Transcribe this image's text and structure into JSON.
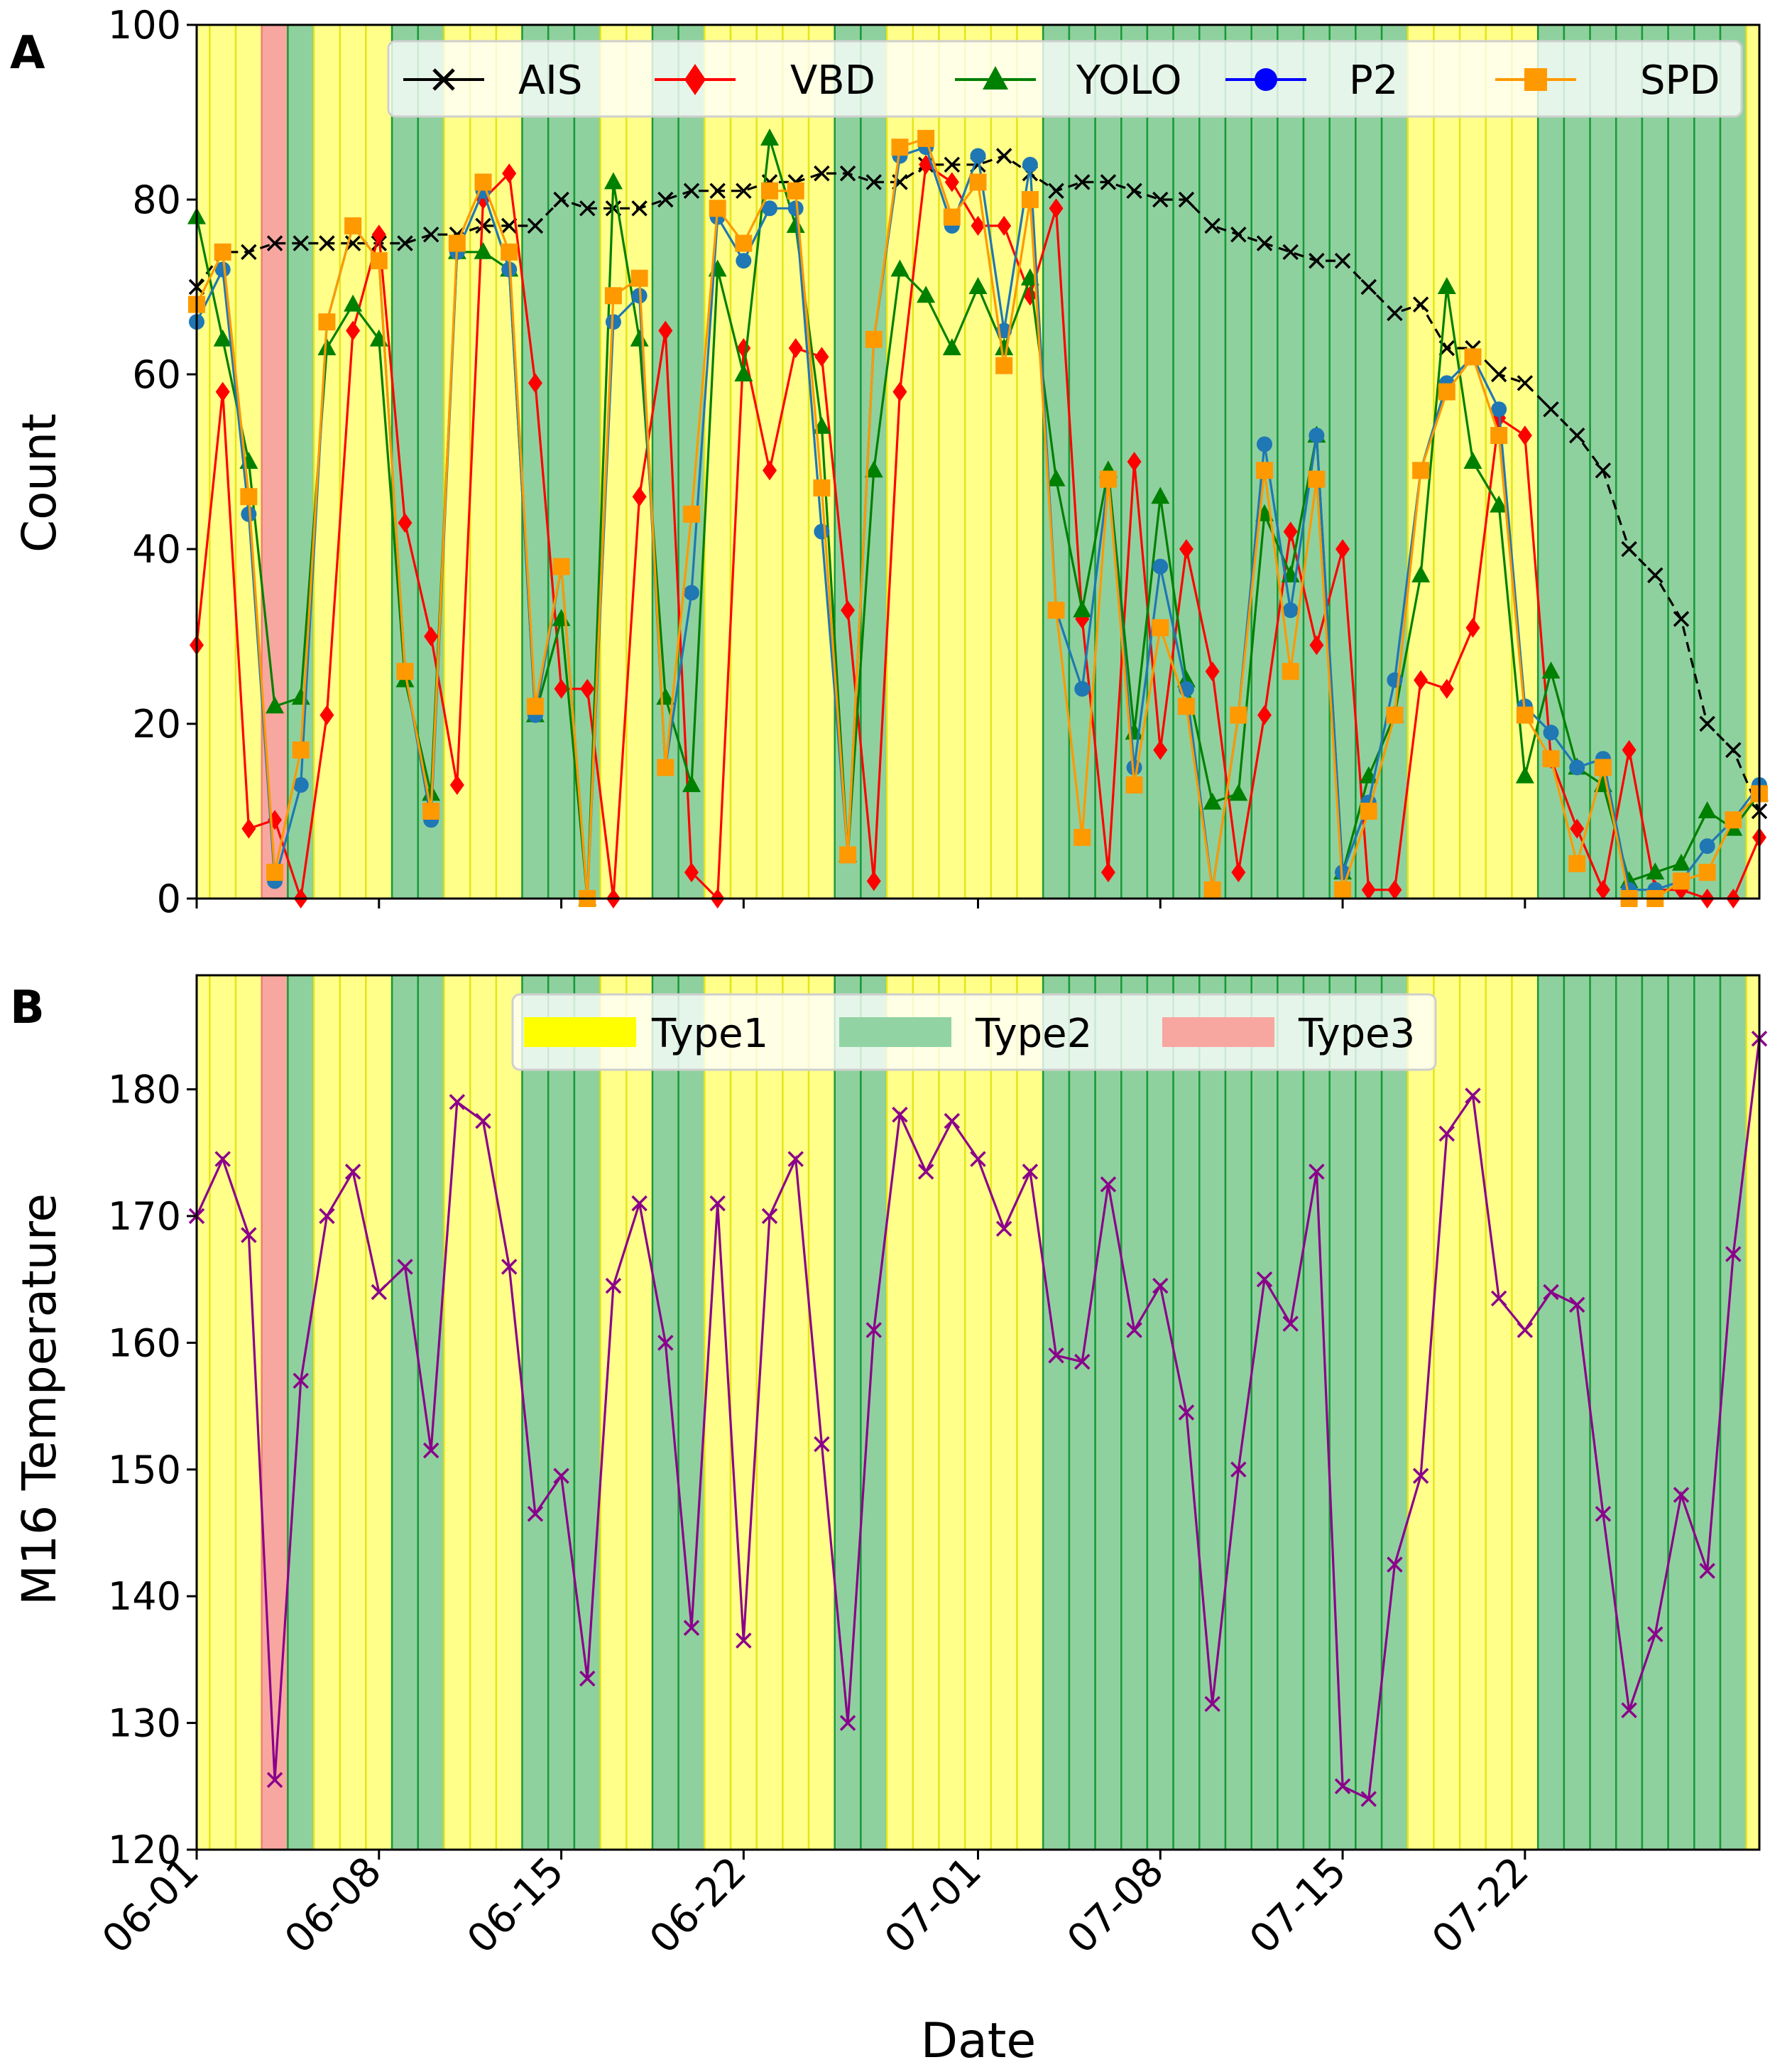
{
  "chart_data": [
    {
      "panel": "A",
      "type": "line",
      "xlabel": "",
      "ylabel": "Count",
      "ylim": [
        0,
        100
      ],
      "yticks": [
        0,
        20,
        40,
        60,
        80,
        100
      ],
      "xlim": [
        0,
        60
      ],
      "xtick_positions": [
        0,
        7,
        14,
        21,
        30,
        37,
        44,
        51
      ],
      "legend_position": "top",
      "series": [
        {
          "name": "AIS",
          "color": "#000000",
          "marker": "x",
          "dashed": true,
          "values": [
            70,
            74,
            74,
            75,
            75,
            75,
            75,
            75,
            75,
            76,
            76,
            77,
            77,
            77,
            80,
            79,
            79,
            79,
            80,
            81,
            81,
            81,
            82,
            82,
            83,
            83,
            82,
            82,
            84,
            84,
            84,
            85,
            83,
            81,
            82,
            82,
            81,
            80,
            80,
            77,
            76,
            75,
            74,
            73,
            73,
            70,
            67,
            68,
            63,
            63,
            60,
            59,
            56,
            53,
            49,
            40,
            37,
            32,
            20,
            17,
            10
          ]
        },
        {
          "name": "VBD",
          "color": "#ff0000",
          "marker": "diamond",
          "values": [
            29,
            58,
            8,
            9,
            0,
            21,
            65,
            76,
            43,
            30,
            13,
            80,
            83,
            59,
            24,
            24,
            0,
            46,
            65,
            3,
            0,
            63,
            49,
            63,
            62,
            33,
            2,
            58,
            84,
            82,
            77,
            77,
            69,
            79,
            32,
            3,
            50,
            17,
            40,
            26,
            3,
            21,
            42,
            29,
            40,
            1,
            1,
            25,
            24,
            31,
            55,
            53,
            16,
            8,
            1,
            17,
            1,
            1,
            0,
            0,
            7
          ]
        },
        {
          "name": "YOLO",
          "color": "#008000",
          "marker": "triangle",
          "values": [
            78,
            64,
            50,
            22,
            23,
            63,
            68,
            64,
            25,
            12,
            74,
            74,
            72,
            21,
            32,
            0,
            82,
            64,
            23,
            13,
            72,
            60,
            87,
            77,
            54,
            5,
            49,
            72,
            69,
            63,
            70,
            63,
            71,
            48,
            33,
            49,
            19,
            46,
            25,
            11,
            12,
            44,
            37,
            53,
            3,
            14,
            21,
            37,
            70,
            50,
            45,
            14,
            26,
            15,
            13,
            2,
            3,
            4,
            10,
            8,
            12
          ]
        },
        {
          "name": "P2",
          "color": "#1f77b4",
          "marker": "circle",
          "values": [
            66,
            72,
            44,
            2,
            13,
            66,
            77,
            73,
            26,
            9,
            74,
            81,
            72,
            21,
            38,
            0,
            66,
            69,
            15,
            35,
            78,
            73,
            79,
            79,
            42,
            5,
            64,
            85,
            86,
            77,
            85,
            65,
            84,
            33,
            24,
            48,
            15,
            38,
            24,
            1,
            21,
            52,
            33,
            53,
            3,
            11,
            25,
            49,
            59,
            62,
            56,
            22,
            19,
            15,
            16,
            1,
            1,
            2,
            6,
            9,
            13
          ]
        },
        {
          "name": "SPD",
          "color": "#ff9900",
          "marker": "square",
          "values": [
            68,
            74,
            46,
            3,
            17,
            66,
            77,
            73,
            26,
            10,
            75,
            82,
            74,
            22,
            38,
            0,
            69,
            71,
            15,
            44,
            79,
            75,
            81,
            81,
            47,
            5,
            64,
            86,
            87,
            78,
            82,
            61,
            80,
            33,
            7,
            48,
            13,
            31,
            22,
            1,
            21,
            49,
            26,
            48,
            1,
            10,
            21,
            49,
            58,
            62,
            53,
            21,
            16,
            4,
            15,
            0,
            0,
            2,
            3,
            9,
            12
          ]
        }
      ]
    },
    {
      "panel": "B",
      "type": "line",
      "xlabel": "Date",
      "ylabel": "M16 Temperature",
      "ylim": [
        120,
        189
      ],
      "yticks": [
        120,
        130,
        140,
        150,
        160,
        170,
        180
      ],
      "xlim": [
        0,
        60
      ],
      "xtick_positions": [
        0,
        7,
        14,
        21,
        30,
        37,
        44,
        51
      ],
      "legend_position": "top",
      "series": [
        {
          "name": "M16 Temperature",
          "color": "#8b008b",
          "marker": "x",
          "values": [
            170,
            174.5,
            168.5,
            125.5,
            157,
            170,
            173.5,
            164,
            166,
            151.5,
            179,
            177.5,
            166,
            146.5,
            149.5,
            133.5,
            164.5,
            171,
            160,
            137.5,
            171,
            136.5,
            170,
            174.5,
            152,
            130,
            161,
            178,
            173.5,
            177.5,
            174.5,
            169,
            173.5,
            159,
            158.5,
            172.5,
            161,
            164.5,
            154.5,
            131.5,
            150,
            165,
            161.5,
            173.5,
            125,
            124,
            142.5,
            149.5,
            176.5,
            179.5,
            163.5,
            161,
            164,
            163,
            146.5,
            131,
            137,
            148,
            142,
            167,
            184
          ]
        }
      ]
    }
  ],
  "x_tick_labels": [
    "06-01",
    "06-08",
    "06-15",
    "06-22",
    "07-01",
    "07-08",
    "07-15",
    "07-22"
  ],
  "day_types": [
    1,
    1,
    1,
    3,
    2,
    1,
    1,
    1,
    2,
    2,
    1,
    1,
    1,
    2,
    2,
    2,
    1,
    1,
    2,
    2,
    1,
    1,
    1,
    1,
    1,
    2,
    2,
    1,
    1,
    1,
    1,
    1,
    1,
    2,
    2,
    2,
    2,
    2,
    2,
    2,
    2,
    2,
    2,
    2,
    2,
    2,
    2,
    1,
    1,
    1,
    1,
    1,
    2,
    2,
    2,
    2,
    2,
    2,
    2,
    2,
    1
  ],
  "type_colors": {
    "1": "#ffff8a",
    "2": "#8fd19e",
    "3": "#f7a7a0"
  },
  "legend_type_labels": [
    "Type1",
    "Type2",
    "Type3"
  ],
  "legend_type_swatch_colors": [
    "#ffff00",
    "#92d3a4",
    "#f7a7a0"
  ],
  "panel_labels": [
    "A",
    "B"
  ]
}
